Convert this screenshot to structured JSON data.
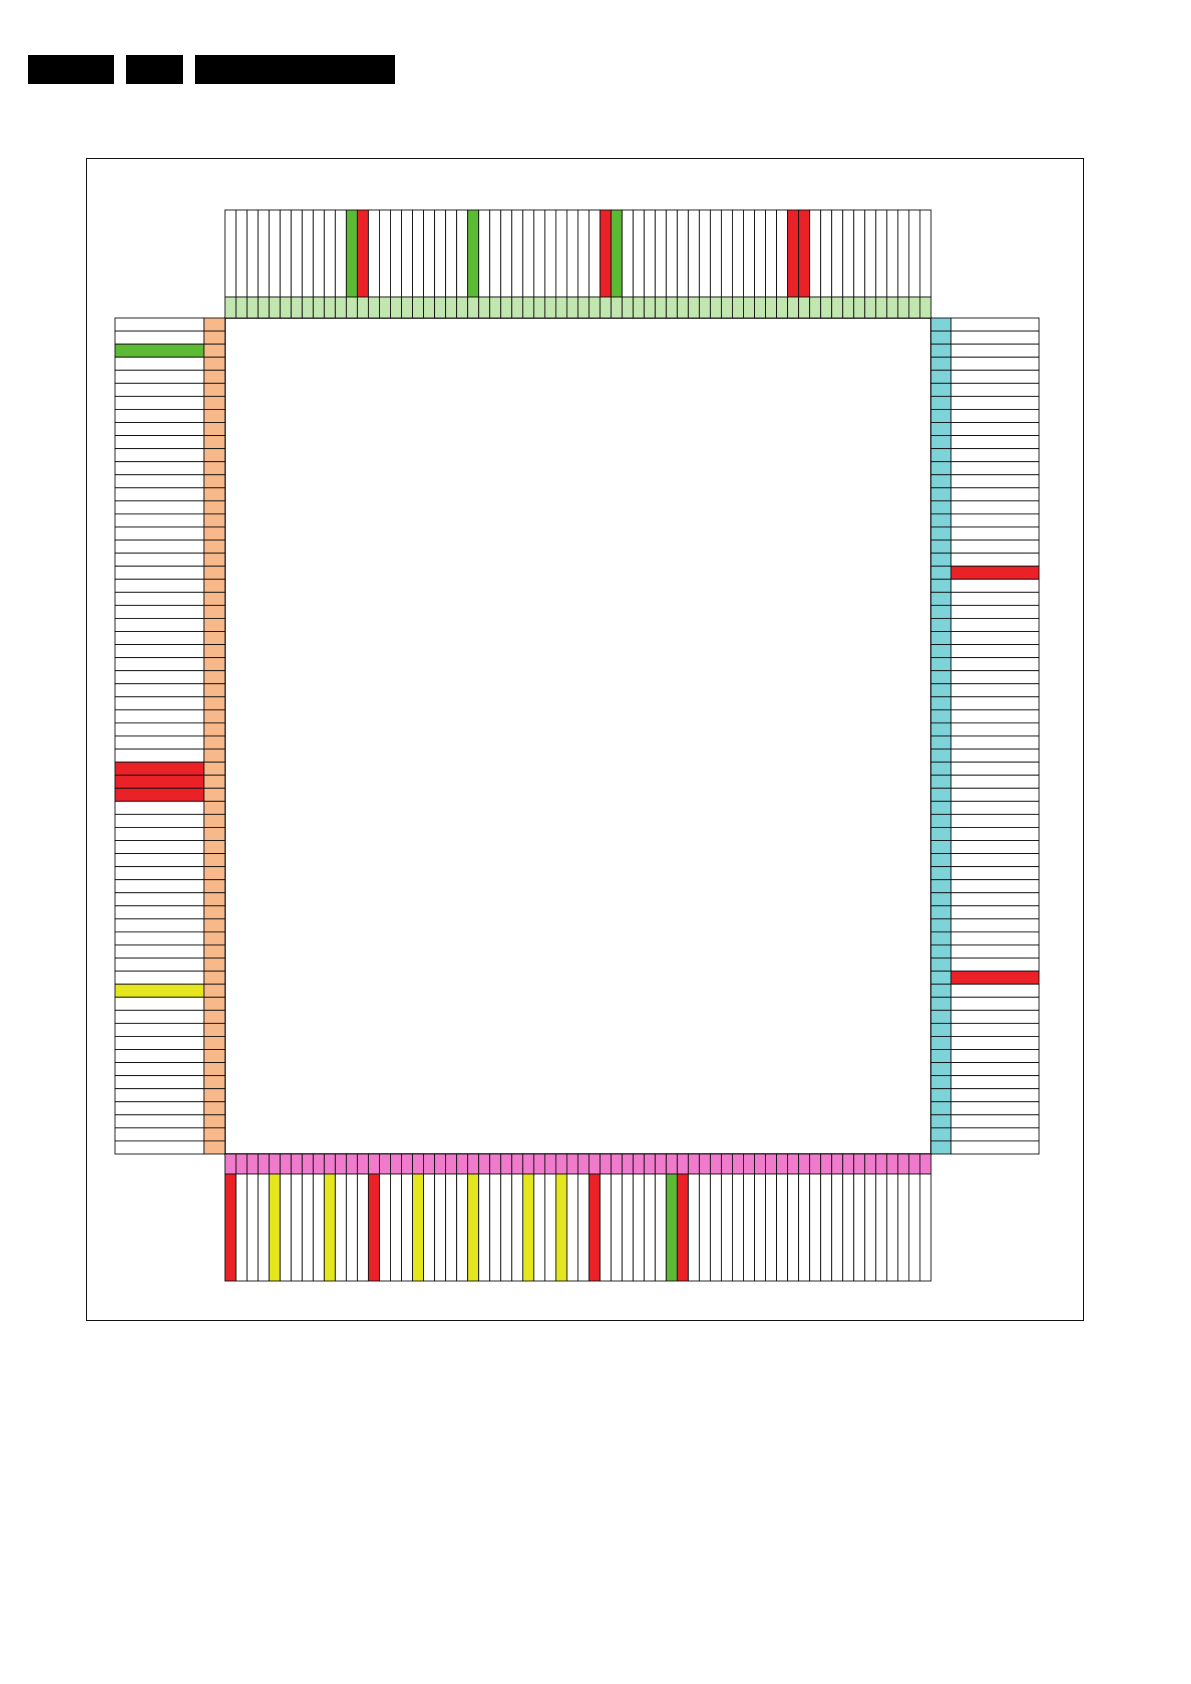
{
  "header": {
    "blocks": [
      "",
      "",
      ""
    ]
  },
  "colors": {
    "line": "#111111",
    "top_band": "#c2e6b0",
    "left_band": "#f7b98a",
    "right_band": "#7dd3d8",
    "bottom_band": "#f07acb",
    "red": "#ea2127",
    "green": "#5cbb34",
    "yellow": "#e6e61e",
    "blank": "#ffffff"
  },
  "package": {
    "top_pins": 64,
    "left_pins": 64,
    "right_pins": 64,
    "bottom_pins": 64
  },
  "highlights": {
    "top": [
      {
        "pin": 11,
        "color": "green"
      },
      {
        "pin": 12,
        "color": "red"
      },
      {
        "pin": 22,
        "color": "green"
      },
      {
        "pin": 34,
        "color": "red"
      },
      {
        "pin": 35,
        "color": "green"
      },
      {
        "pin": 51,
        "color": "red"
      },
      {
        "pin": 52,
        "color": "red"
      }
    ],
    "left": [
      {
        "pin": 2,
        "color": "green"
      },
      {
        "pin": 34,
        "color": "red"
      },
      {
        "pin": 35,
        "color": "red"
      },
      {
        "pin": 36,
        "color": "red"
      },
      {
        "pin": 51,
        "color": "yellow"
      }
    ],
    "right": [
      {
        "pin": 19,
        "color": "red"
      },
      {
        "pin": 50,
        "color": "red"
      }
    ],
    "bottom": [
      {
        "pin": 0,
        "color": "red"
      },
      {
        "pin": 4,
        "color": "yellow"
      },
      {
        "pin": 9,
        "color": "yellow"
      },
      {
        "pin": 13,
        "color": "red"
      },
      {
        "pin": 17,
        "color": "yellow"
      },
      {
        "pin": 22,
        "color": "yellow"
      },
      {
        "pin": 27,
        "color": "yellow"
      },
      {
        "pin": 30,
        "color": "yellow"
      },
      {
        "pin": 33,
        "color": "red"
      },
      {
        "pin": 40,
        "color": "green"
      },
      {
        "pin": 41,
        "color": "red"
      }
    ]
  }
}
